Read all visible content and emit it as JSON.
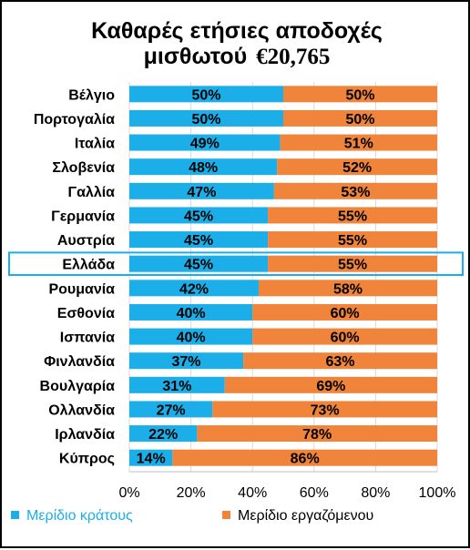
{
  "chart_data": {
    "type": "bar",
    "orientation": "horizontal",
    "stacked": "percent",
    "title": "Καθαρές ετήσιες αποδοχές",
    "title_line2": "μισθωτού",
    "title_value": "€20,765",
    "categories": [
      "Βέλγιο",
      "Πορτογαλία",
      "Ιταλία",
      "Σλοβενία",
      "Γαλλία",
      "Γερμανία",
      "Αυστρία",
      "Ελλάδα",
      "Ρουμανία",
      "Εσθονία",
      "Ισπανία",
      "Φινλανδία",
      "Βουλγαρία",
      "Ολλανδία",
      "Ιρλανδία",
      "Κύπρος"
    ],
    "highlight_category": "Ελλάδα",
    "series": [
      {
        "name": "Μερίδιο κράτους",
        "color": "#1BAEE8",
        "values": [
          50,
          50,
          49,
          48,
          47,
          45,
          45,
          45,
          42,
          40,
          40,
          37,
          31,
          27,
          22,
          14
        ],
        "labels": [
          "50%",
          "50%",
          "49%",
          "48%",
          "47%",
          "45%",
          "45%",
          "45%",
          "42%",
          "40%",
          "40%",
          "37%",
          "31%",
          "27%",
          "22%",
          "14%"
        ]
      },
      {
        "name": "Μερίδιο εργαζόμενου",
        "color": "#F0843A",
        "values": [
          50,
          50,
          51,
          52,
          53,
          55,
          55,
          55,
          58,
          60,
          60,
          63,
          69,
          73,
          78,
          86
        ],
        "labels": [
          "50%",
          "50%",
          "51%",
          "52%",
          "53%",
          "55%",
          "55%",
          "55%",
          "58%",
          "60%",
          "60%",
          "63%",
          "69%",
          "73%",
          "78%",
          "86%"
        ]
      }
    ],
    "xlim": [
      0,
      100
    ],
    "x_ticks": [
      "0%",
      "20%",
      "40%",
      "60%",
      "80%",
      "100%"
    ],
    "grid": true,
    "legend_position": "bottom",
    "highlight_color": "#1BAEE8"
  }
}
